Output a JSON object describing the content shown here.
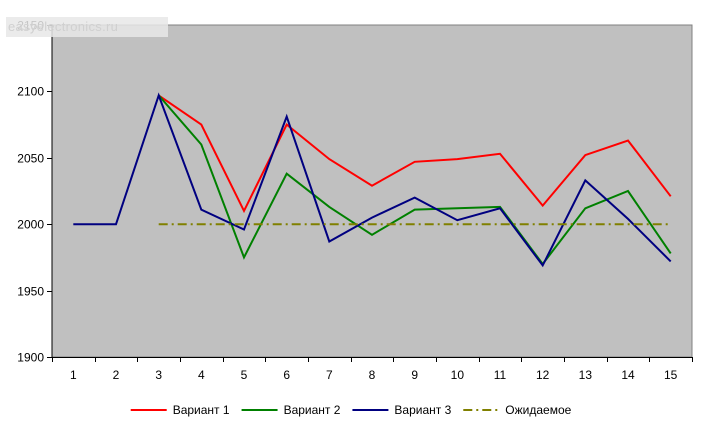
{
  "watermark": "easyelectronics.ru",
  "chart_data": {
    "type": "line",
    "title": "",
    "xlabel": "",
    "ylabel": "",
    "categories": [
      "1",
      "2",
      "3",
      "4",
      "5",
      "6",
      "7",
      "8",
      "9",
      "10",
      "11",
      "12",
      "13",
      "14",
      "15"
    ],
    "ylim": [
      1900,
      2150
    ],
    "yticks": [
      1900,
      1950,
      2000,
      2050,
      2100,
      2150
    ],
    "grid": false,
    "plot_background": "#c0c0c0",
    "legend_position": "bottom",
    "series": [
      {
        "name": "Вариант 1",
        "color": "#ff0000",
        "style": "solid",
        "x": [
          3,
          4,
          5,
          6,
          7,
          8,
          9,
          10,
          11,
          12,
          13,
          14,
          15
        ],
        "values": [
          2097,
          2075,
          2010,
          2075,
          2049,
          2029,
          2047,
          2049,
          2053,
          2014,
          2052,
          2063,
          2021
        ]
      },
      {
        "name": "Вариант 2",
        "color": "#008000",
        "style": "solid",
        "x": [
          3,
          4,
          5,
          6,
          7,
          8,
          9,
          10,
          11,
          12,
          13,
          14,
          15
        ],
        "values": [
          2097,
          2060,
          1975,
          2038,
          2013,
          1992,
          2011,
          2012,
          2013,
          1970,
          2012,
          2025,
          1978
        ]
      },
      {
        "name": "Вариант 3",
        "color": "#000080",
        "style": "solid",
        "x": [
          1,
          2,
          3,
          4,
          5,
          6,
          7,
          8,
          9,
          10,
          11,
          12,
          13,
          14,
          15
        ],
        "values": [
          2000,
          2000,
          2097,
          2011,
          1996,
          2081,
          1987,
          2005,
          2020,
          2003,
          2012,
          1969,
          2033,
          2004,
          1972
        ]
      },
      {
        "name": "Ожидаемое",
        "color": "#808000",
        "style": "dashdot",
        "x": [
          3,
          4,
          5,
          6,
          7,
          8,
          9,
          10,
          11,
          12,
          13,
          14,
          15
        ],
        "values": [
          2000,
          2000,
          2000,
          2000,
          2000,
          2000,
          2000,
          2000,
          2000,
          2000,
          2000,
          2000,
          2000
        ]
      }
    ]
  }
}
